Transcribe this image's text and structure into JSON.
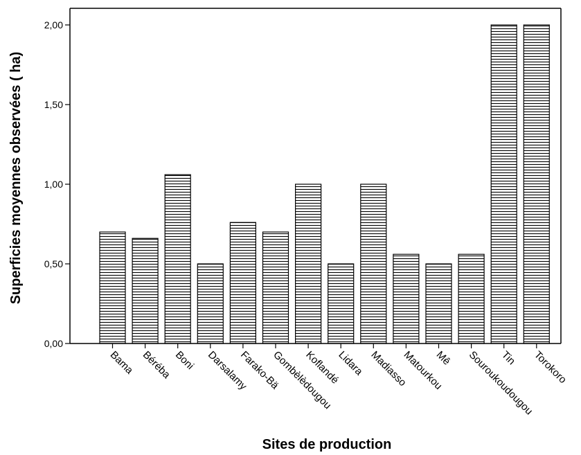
{
  "chart_data": {
    "type": "bar",
    "title": "",
    "xlabel": "Sites de production",
    "ylabel": "Superficies moyennes observées ( ha)",
    "ylim": [
      0,
      2.2
    ],
    "yticks": [
      0,
      0.5,
      1.0,
      1.5,
      2.0
    ],
    "ytick_labels": [
      "0,00",
      "0,50",
      "1,00",
      "1,50",
      "2,00"
    ],
    "categories": [
      "Bama",
      "Béréba",
      "Boni",
      "Darsalamy",
      "Farako-Bä",
      "Gombèlèdougou",
      "Koflandé",
      "Lidara",
      "Madiasso",
      "Matourkou",
      "Mê",
      "Souroukoudougou",
      "Tin",
      "Torokoro"
    ],
    "values": [
      0.7,
      0.66,
      1.06,
      0.5,
      0.76,
      0.7,
      1.0,
      0.5,
      1.0,
      0.56,
      0.5,
      0.56,
      2.0,
      2.0
    ],
    "grid": false,
    "bar_fill": "horizontal-hatch",
    "colors": {
      "bar_stroke": "#000000",
      "hatch": "#000000",
      "background": "#ffffff"
    }
  }
}
